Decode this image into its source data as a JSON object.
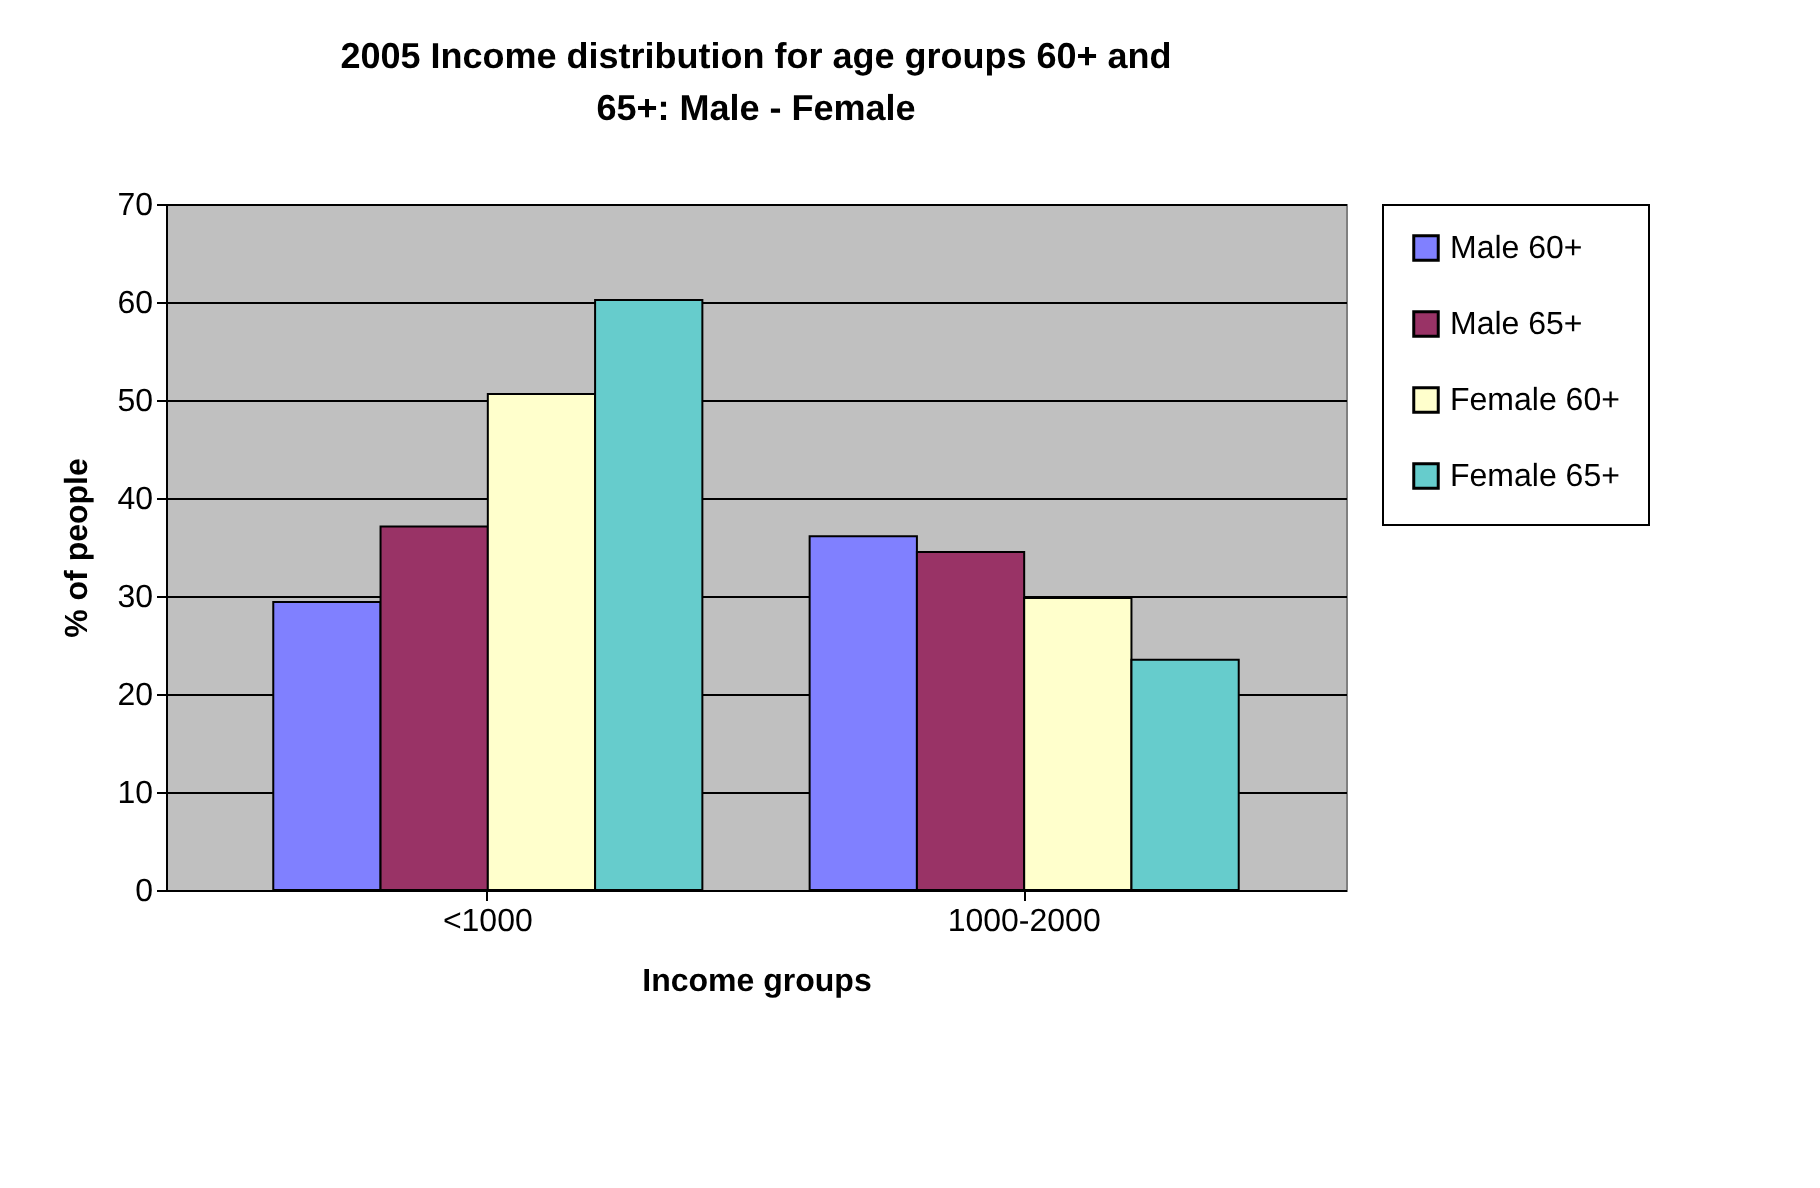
{
  "chart_data": {
    "type": "bar",
    "title": "2005 Income distribution for age groups 60+ and 65+: Male - Female",
    "xlabel": "Income groups",
    "ylabel": "% of people",
    "categories": [
      "<1000",
      "1000-2000"
    ],
    "series": [
      {
        "name": "Male 60+",
        "color": "#8080ff",
        "values": [
          29.4,
          36.1
        ]
      },
      {
        "name": "Male 65+",
        "color": "#993366",
        "values": [
          37.1,
          34.5
        ]
      },
      {
        "name": "Female 60+",
        "color": "#ffffcc",
        "values": [
          50.6,
          29.8
        ]
      },
      {
        "name": "Female 65+",
        "color": "#66cccc",
        "values": [
          60.2,
          23.5
        ]
      }
    ],
    "ylim": [
      0,
      70
    ],
    "yticks": [
      0,
      10,
      20,
      30,
      40,
      50,
      60,
      70
    ],
    "grid": "y",
    "legend": "right"
  }
}
